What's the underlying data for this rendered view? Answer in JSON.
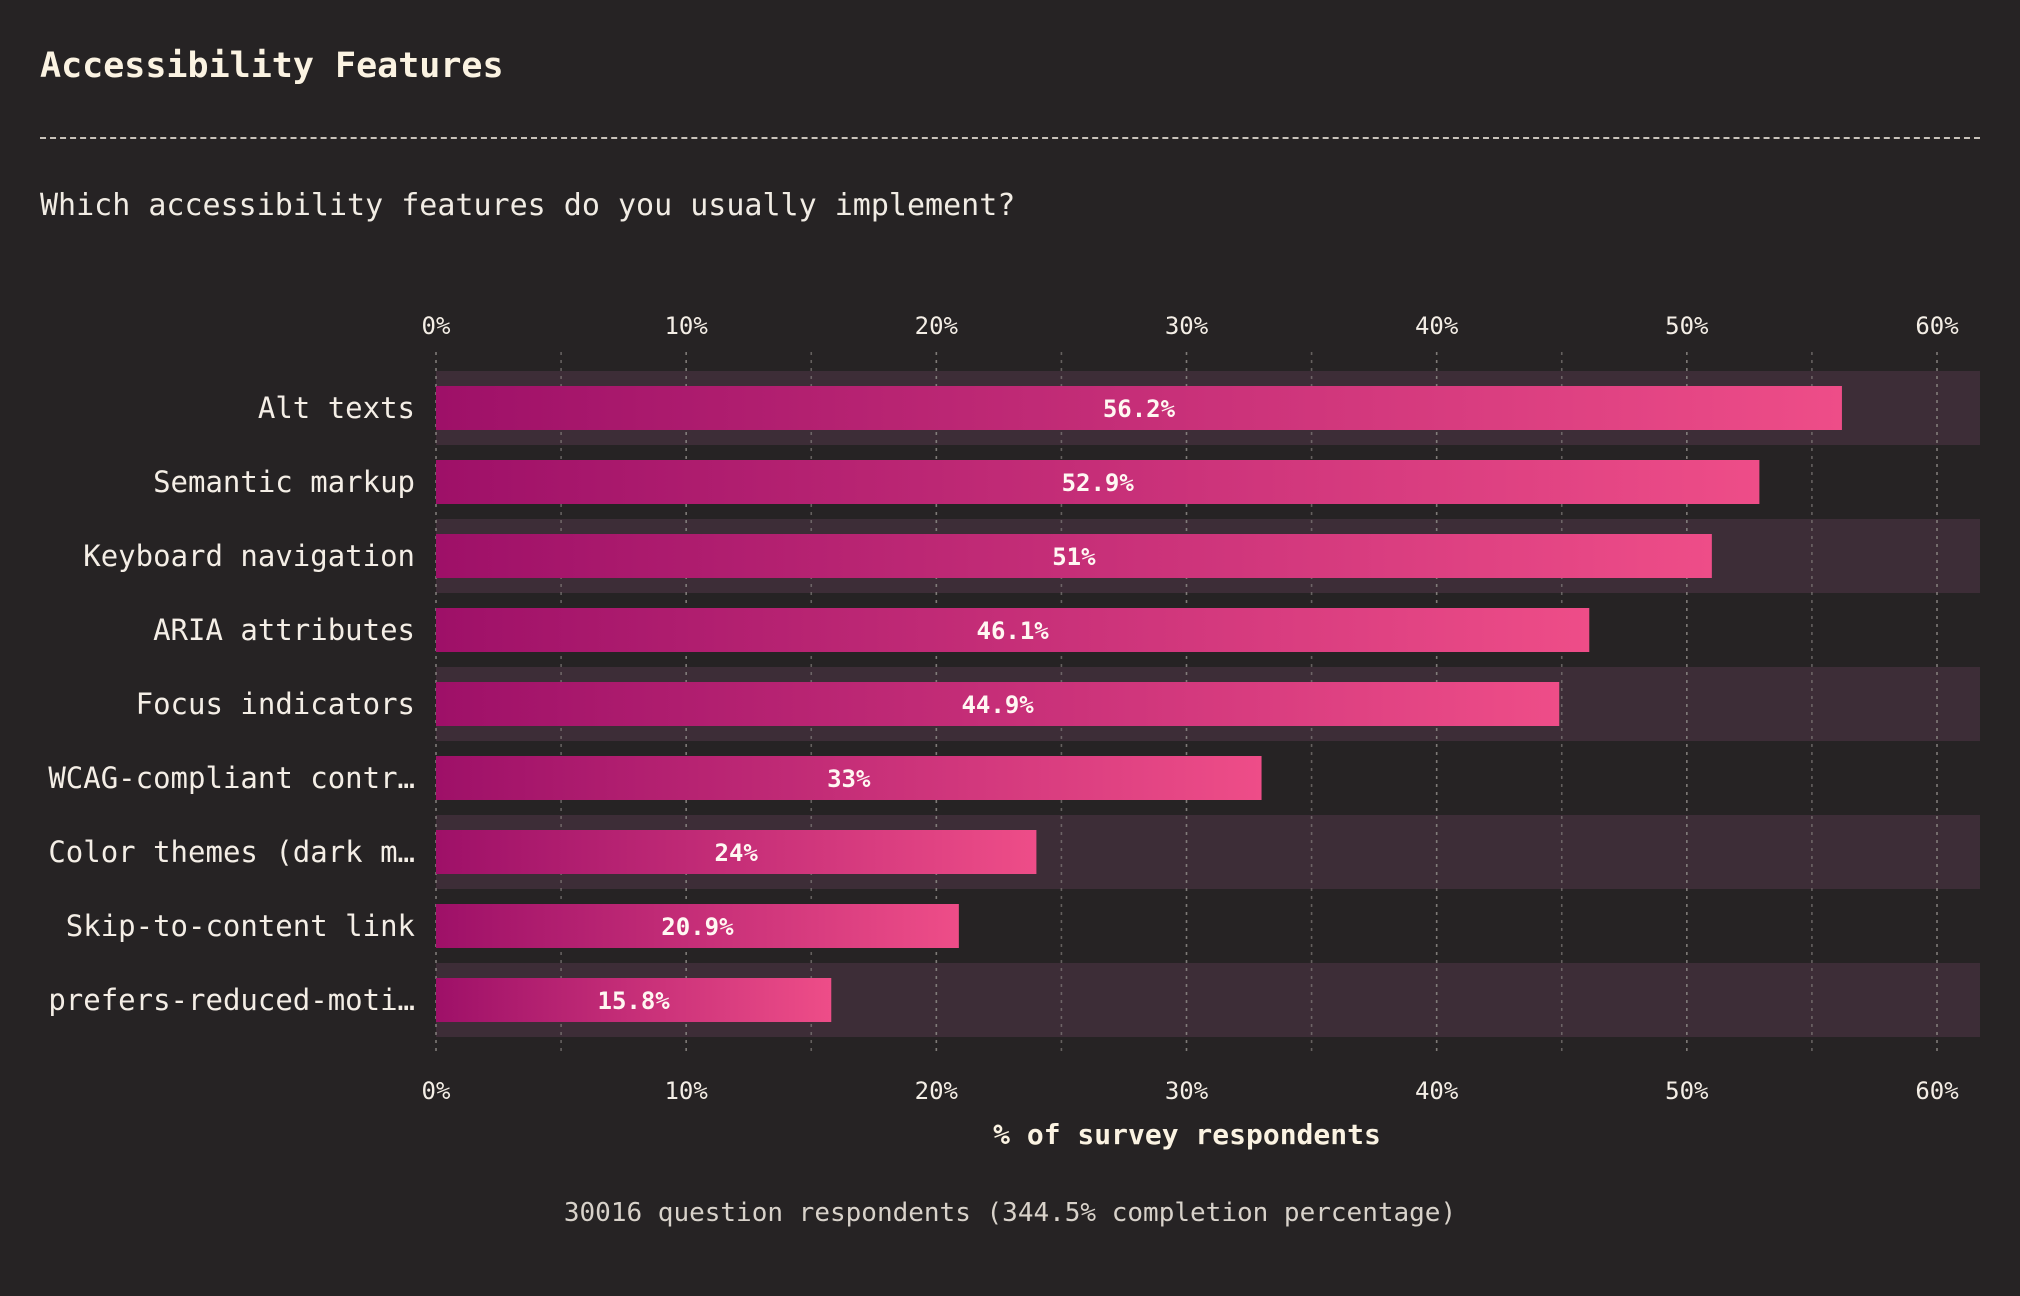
{
  "header": {
    "title": "Accessibility Features",
    "question": "Which accessibility features do you usually implement?"
  },
  "footer": {
    "respondents_note": "30016 question respondents (344.5% completion percentage)"
  },
  "colors": {
    "background": "#262324",
    "band": "#3d2d37",
    "bar_start": "#9e1068",
    "bar_end": "#ee4d88",
    "text": "#f4eee6",
    "grid": "#8e8a86"
  },
  "chart_data": {
    "type": "bar",
    "orientation": "horizontal",
    "categories": [
      "Alt texts",
      "Semantic markup",
      "Keyboard navigation",
      "ARIA attributes",
      "Focus indicators",
      "WCAG-compliant contr…",
      "Color themes (dark m…",
      "Skip-to-content link",
      "prefers-reduced-moti…"
    ],
    "values": [
      56.2,
      52.9,
      51,
      46.1,
      44.9,
      33,
      24,
      20.9,
      15.8
    ],
    "value_labels": [
      "56.2%",
      "52.9%",
      "51%",
      "46.1%",
      "44.9%",
      "33%",
      "24%",
      "20.9%",
      "15.8%"
    ],
    "xlim": [
      0,
      62
    ],
    "ticks": [
      0,
      10,
      20,
      30,
      40,
      50,
      60
    ],
    "tick_labels": [
      "0%",
      "10%",
      "20%",
      "30%",
      "40%",
      "50%",
      "60%"
    ],
    "xlabel": "% of survey respondents",
    "ylabel": "",
    "grid": true
  }
}
